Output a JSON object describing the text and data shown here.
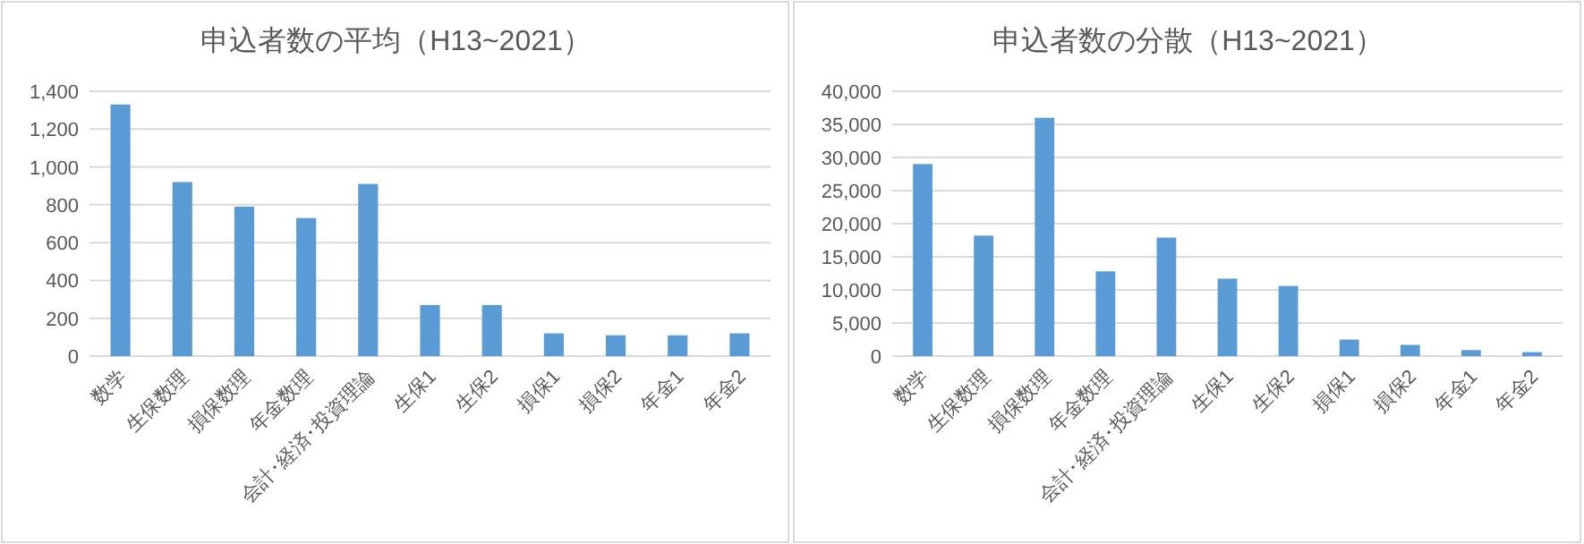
{
  "chart_data": [
    {
      "type": "bar",
      "title": "申込者数の平均（H13~2021）",
      "categories": [
        "数学",
        "生保数理",
        "損保数理",
        "年金数理",
        "会計･経済･投資理論",
        "生保1",
        "生保2",
        "損保1",
        "損保2",
        "年金1",
        "年金2"
      ],
      "values": [
        1330,
        920,
        790,
        730,
        910,
        270,
        270,
        120,
        110,
        110,
        120
      ],
      "color": "#5b9bd5",
      "ylim": [
        0,
        1400
      ],
      "yticks": [
        0,
        {
          "value": 200,
          "label": "200"
        },
        {
          "value": 400,
          "label": "400"
        },
        {
          "value": 600,
          "label": "600"
        },
        {
          "value": 800,
          "label": "800"
        },
        {
          "value": 1000,
          "label": "1,000"
        },
        {
          "value": 1200,
          "label": "1,200"
        },
        {
          "value": 1400,
          "label": "1,400"
        }
      ],
      "grid": "y"
    },
    {
      "type": "bar",
      "title": "申込者数の分散（H13~2021）",
      "categories": [
        "数学",
        "生保数理",
        "損保数理",
        "年金数理",
        "会計･経済･投資理論",
        "生保1",
        "生保2",
        "損保1",
        "損保2",
        "年金1",
        "年金2"
      ],
      "values": [
        29000,
        18200,
        36000,
        12800,
        17900,
        11700,
        10600,
        2500,
        1700,
        900,
        600
      ],
      "color": "#5b9bd5",
      "ylim": [
        0,
        40000
      ],
      "yticks": [
        0,
        {
          "value": 5000,
          "label": "5,000"
        },
        {
          "value": 10000,
          "label": "10,000"
        },
        {
          "value": 15000,
          "label": "15,000"
        },
        {
          "value": 20000,
          "label": "20,000"
        },
        {
          "value": 25000,
          "label": "25,000"
        },
        {
          "value": 30000,
          "label": "30,000"
        },
        {
          "value": 35000,
          "label": "35,000"
        },
        {
          "value": 40000,
          "label": "40,000"
        }
      ],
      "grid": "y"
    }
  ]
}
